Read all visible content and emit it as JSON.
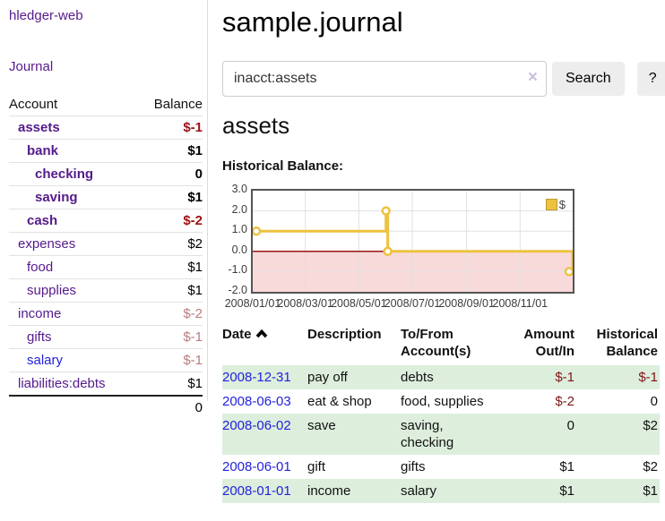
{
  "app": {
    "brand": "hledger-web",
    "nav_journal": "Journal"
  },
  "sidebar": {
    "header": {
      "account": "Account",
      "balance": "Balance"
    },
    "accounts": [
      {
        "name": "assets",
        "balance": "$-1",
        "indent": 1,
        "bold": true,
        "link_color": "purple",
        "balance_style": "neg-strong"
      },
      {
        "name": "bank",
        "balance": "$1",
        "indent": 2,
        "bold": true,
        "link_color": "purple",
        "balance_style": "pos"
      },
      {
        "name": "checking",
        "balance": "0",
        "indent": 3,
        "bold": true,
        "link_color": "purple",
        "balance_style": "pos"
      },
      {
        "name": "saving",
        "balance": "$1",
        "indent": 3,
        "bold": true,
        "link_color": "purple",
        "balance_style": "pos"
      },
      {
        "name": "cash",
        "balance": "$-2",
        "indent": 2,
        "bold": true,
        "link_color": "purple",
        "balance_style": "neg-strong"
      },
      {
        "name": "expenses",
        "balance": "$2",
        "indent": 1,
        "bold": false,
        "link_color": "purple",
        "balance_style": "pos"
      },
      {
        "name": "food",
        "balance": "$1",
        "indent": 2,
        "bold": false,
        "link_color": "purple",
        "balance_style": "pos"
      },
      {
        "name": "supplies",
        "balance": "$1",
        "indent": 2,
        "bold": false,
        "link_color": "purple",
        "balance_style": "pos"
      },
      {
        "name": "income",
        "balance": "$-2",
        "indent": 1,
        "bold": false,
        "link_color": "purple",
        "balance_style": "neg-faded"
      },
      {
        "name": "gifts",
        "balance": "$-1",
        "indent": 2,
        "bold": false,
        "link_color": "purple",
        "balance_style": "neg-faded"
      },
      {
        "name": "salary",
        "balance": "$-1",
        "indent": 2,
        "bold": false,
        "link_color": "blue",
        "balance_style": "neg-faded"
      },
      {
        "name": "liabilities:debts",
        "balance": "$1",
        "indent": 1,
        "bold": false,
        "link_color": "purple",
        "balance_style": "pos"
      }
    ],
    "total": "0"
  },
  "header": {
    "title": "sample.journal"
  },
  "search": {
    "value": "inacct:assets",
    "clear_icon": "×",
    "button": "Search",
    "help_button": "?"
  },
  "account_page": {
    "title": "assets",
    "chart_label": "Historical Balance:"
  },
  "chart_data": {
    "type": "line",
    "line_style": "step",
    "title": "Historical Balance",
    "series": [
      {
        "name": "$",
        "color": "#edc240",
        "points": [
          [
            "2008-01-01",
            1.0
          ],
          [
            "2008-06-01",
            2.0
          ],
          [
            "2008-06-03",
            0.0
          ],
          [
            "2008-12-31",
            -1.0
          ]
        ]
      }
    ],
    "ylim": [
      -2.0,
      3.0
    ],
    "yticks": [
      3.0,
      2.0,
      1.0,
      0.0,
      -1.0,
      -2.0
    ],
    "xticks": [
      "2008/01/01",
      "2008/03/01",
      "2008/05/01",
      "2008/07/01",
      "2008/09/01",
      "2008/11/01"
    ],
    "x_range": [
      "2008-01-01",
      "2008-12-31"
    ],
    "grid": true,
    "legend_position": "top-right",
    "legend_label": "$",
    "negative_region_color": "#f9dada",
    "zero_line_color": "#8b0000"
  },
  "register": {
    "headers": {
      "date": "Date",
      "description": "Description",
      "accounts": "To/From Account(s)",
      "amount": "Amount Out/In",
      "balance": "Historical Balance"
    },
    "rows": [
      {
        "date": "2008-12-31",
        "description": "pay off",
        "accounts": "debts",
        "amount": "$-1",
        "amount_neg": true,
        "balance": "$-1",
        "balance_neg": true,
        "stripe": true
      },
      {
        "date": "2008-06-03",
        "description": "eat & shop",
        "accounts": "food, supplies",
        "amount": "$-2",
        "amount_neg": true,
        "balance": "0",
        "balance_neg": false,
        "stripe": false
      },
      {
        "date": "2008-06-02",
        "description": "save",
        "accounts": "saving, checking",
        "amount": "0",
        "amount_neg": false,
        "balance": "$2",
        "balance_neg": false,
        "stripe": true
      },
      {
        "date": "2008-06-01",
        "description": "gift",
        "accounts": "gifts",
        "amount": "$1",
        "amount_neg": false,
        "balance": "$2",
        "balance_neg": false,
        "stripe": false
      },
      {
        "date": "2008-01-01",
        "description": "income",
        "accounts": "salary",
        "amount": "$1",
        "amount_neg": false,
        "balance": "$1",
        "balance_neg": false,
        "stripe": true
      }
    ]
  }
}
